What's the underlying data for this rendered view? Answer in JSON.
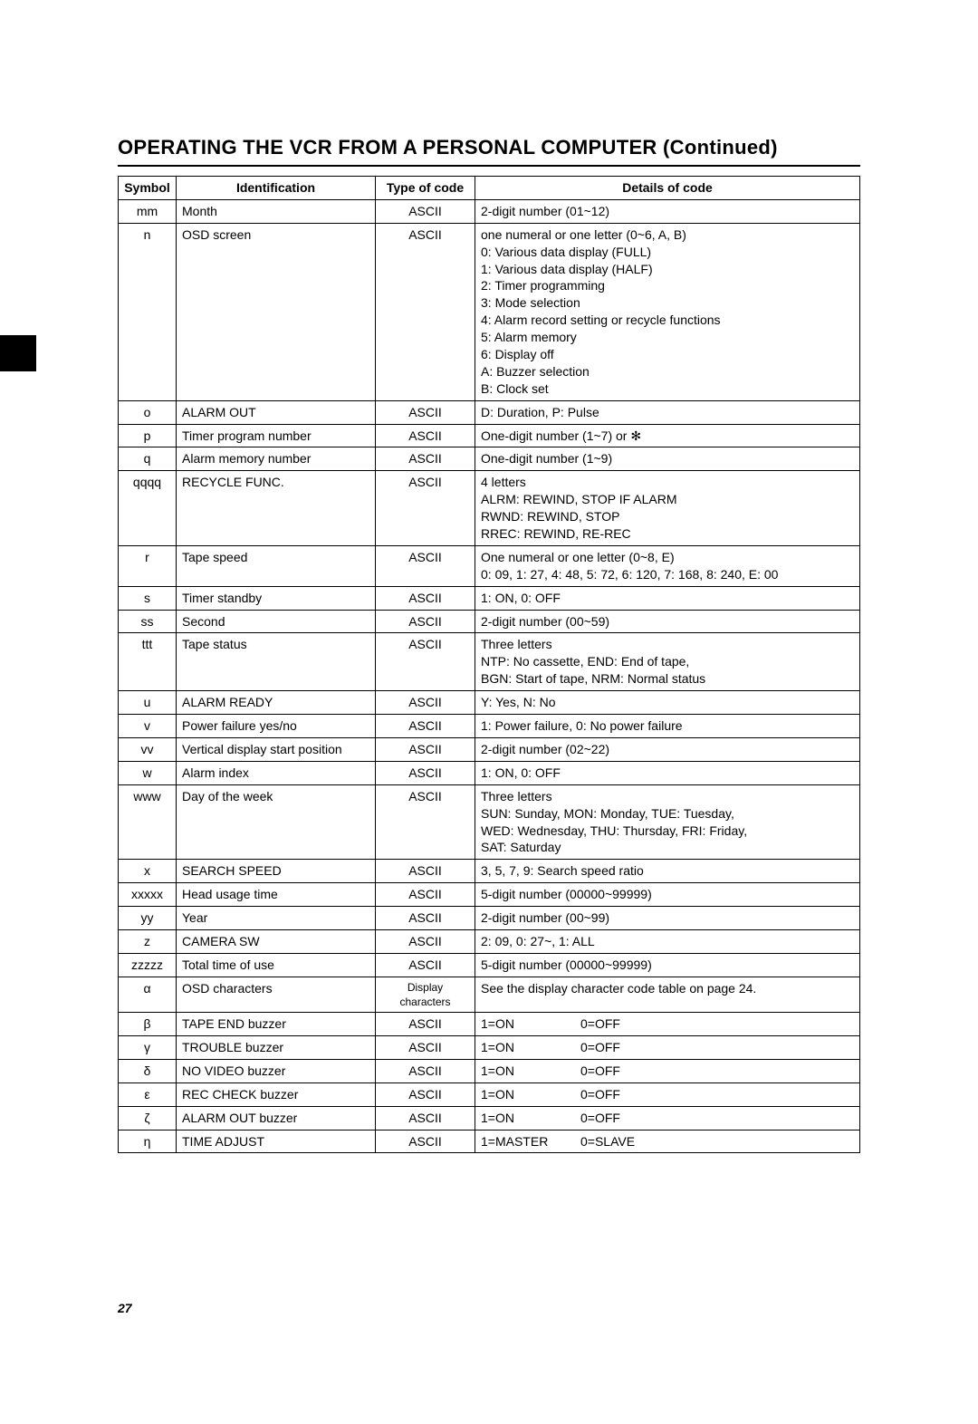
{
  "title": "OPERATING THE VCR FROM A PERSONAL COMPUTER (Continued)",
  "page_number": "27",
  "columns": [
    "Symbol",
    "Identification",
    "Type of code",
    "Details of code"
  ],
  "rows": [
    {
      "sym": "mm",
      "id": "Month",
      "type": "ASCII",
      "details": [
        "2-digit number (01~12)"
      ]
    },
    {
      "sym": "n",
      "id": "OSD screen",
      "type": "ASCII",
      "details": [
        "one numeral or one letter (0~6, A, B)",
        "0: Various data display (FULL)",
        "1: Various data display (HALF)",
        "2: Timer programming",
        "3: Mode selection",
        "4: Alarm record setting or recycle functions",
        "5: Alarm memory",
        "6: Display off",
        "A: Buzzer selection",
        "B: Clock set"
      ]
    },
    {
      "sym": "o",
      "id": "ALARM OUT",
      "type": "ASCII",
      "details": [
        "D: Duration, P: Pulse"
      ]
    },
    {
      "sym": "p",
      "id": "Timer program number",
      "type": "ASCII",
      "details": [
        "One-digit number (1~7) or ✻"
      ]
    },
    {
      "sym": "q",
      "id": "Alarm memory number",
      "type": "ASCII",
      "details": [
        "One-digit number (1~9)"
      ]
    },
    {
      "sym": "qqqq",
      "id": "RECYCLE FUNC.",
      "type": "ASCII",
      "details": [
        "4 letters",
        "ALRM: REWIND, STOP IF ALARM",
        "RWND: REWIND, STOP",
        "RREC: REWIND, RE-REC"
      ]
    },
    {
      "sym": "r",
      "id": "Tape speed",
      "type": "ASCII",
      "details": [
        "One numeral or one letter (0~8, E)",
        "0: 09, 1: 27, 4: 48, 5: 72, 6: 120, 7: 168, 8: 240, E: 00"
      ]
    },
    {
      "sym": "s",
      "id": "Timer standby",
      "type": "ASCII",
      "details": [
        "1: ON, 0: OFF"
      ]
    },
    {
      "sym": "ss",
      "id": "Second",
      "type": "ASCII",
      "details": [
        "2-digit number (00~59)"
      ]
    },
    {
      "sym": "ttt",
      "id": "Tape status",
      "type": "ASCII",
      "details": [
        "Three letters",
        "NTP: No cassette, END: End of tape,",
        "BGN: Start of tape, NRM: Normal status"
      ]
    },
    {
      "sym": "u",
      "id": "ALARM READY",
      "type": "ASCII",
      "details": [
        "Y: Yes, N: No"
      ]
    },
    {
      "sym": "v",
      "id": "Power failure yes/no",
      "type": "ASCII",
      "details": [
        "1: Power failure, 0: No power failure"
      ]
    },
    {
      "sym": "vv",
      "id": "Vertical display start position",
      "type": "ASCII",
      "details": [
        "2-digit number (02~22)"
      ]
    },
    {
      "sym": "w",
      "id": "Alarm index",
      "type": "ASCII",
      "details": [
        "1: ON, 0: OFF"
      ]
    },
    {
      "sym": "www",
      "id": "Day of the week",
      "type": "ASCII",
      "details": [
        "Three letters",
        "SUN: Sunday, MON: Monday, TUE: Tuesday,",
        "WED: Wednesday, THU: Thursday, FRI: Friday,",
        "SAT: Saturday"
      ]
    },
    {
      "sym": "x",
      "id": "SEARCH SPEED",
      "type": "ASCII",
      "details": [
        "3, 5, 7, 9: Search speed ratio"
      ]
    },
    {
      "sym": "xxxxx",
      "id": "Head usage time",
      "type": "ASCII",
      "details": [
        "5-digit number (00000~99999)"
      ]
    },
    {
      "sym": "yy",
      "id": "Year",
      "type": "ASCII",
      "details": [
        "2-digit number (00~99)"
      ]
    },
    {
      "sym": "z",
      "id": "CAMERA SW",
      "type": "ASCII",
      "details": [
        "2: 09, 0: 27~, 1: ALL"
      ]
    },
    {
      "sym": "zzzzz",
      "id": "Total time of use",
      "type": "ASCII",
      "details": [
        "5-digit number (00000~99999)"
      ]
    },
    {
      "sym": "α",
      "id": "OSD characters",
      "type": "Display characters",
      "type_small": true,
      "details": [
        "See the display character code table on page 24."
      ]
    },
    {
      "sym": "β",
      "id": "TAPE END buzzer",
      "type": "ASCII",
      "details_2col": {
        "a": "1=ON",
        "b": "0=OFF"
      }
    },
    {
      "sym": "γ",
      "id": "TROUBLE buzzer",
      "type": "ASCII",
      "details_2col": {
        "a": "1=ON",
        "b": "0=OFF"
      }
    },
    {
      "sym": "δ",
      "id": "NO VIDEO buzzer",
      "type": "ASCII",
      "details_2col": {
        "a": "1=ON",
        "b": "0=OFF"
      }
    },
    {
      "sym": "ε",
      "id": "REC CHECK buzzer",
      "type": "ASCII",
      "details_2col": {
        "a": "1=ON",
        "b": "0=OFF"
      }
    },
    {
      "sym": "ζ",
      "id": "ALARM OUT buzzer",
      "type": "ASCII",
      "details_2col": {
        "a": "1=ON",
        "b": "0=OFF"
      }
    },
    {
      "sym": "η",
      "id": "TIME ADJUST",
      "type": "ASCII",
      "details_2col": {
        "a": "1=MASTER",
        "b": "0=SLAVE"
      }
    }
  ]
}
